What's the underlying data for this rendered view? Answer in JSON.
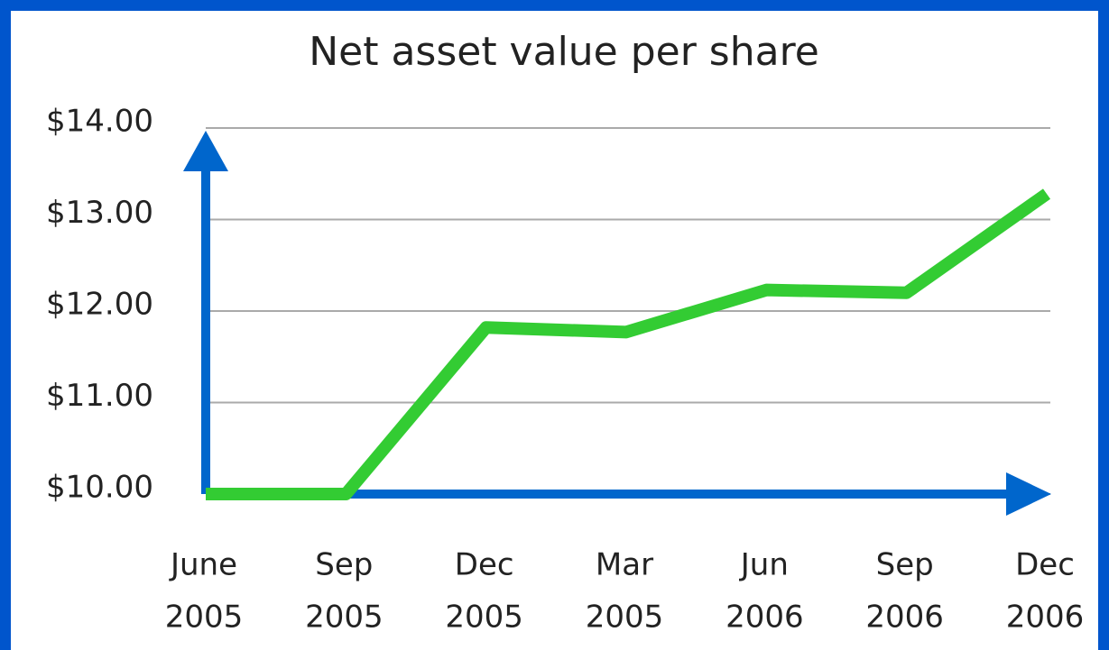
{
  "chart_data": {
    "type": "line",
    "title": "Net asset value per share",
    "categories": [
      [
        "June",
        "2005"
      ],
      [
        "Sep",
        "2005"
      ],
      [
        "Dec",
        "2005"
      ],
      [
        "Mar",
        "2005"
      ],
      [
        "Jun",
        "2006"
      ],
      [
        "Sep",
        "2006"
      ],
      [
        "Dec",
        "2006"
      ]
    ],
    "series": [
      {
        "name": "Net asset value per share",
        "color": "#33cc33",
        "values": [
          10,
          10,
          11.82,
          11.77,
          12.23,
          12.2,
          13.28
        ]
      }
    ],
    "ylim": [
      10,
      14
    ],
    "yticks": [
      {
        "value": 10,
        "label": "$10.00"
      },
      {
        "value": 11,
        "label": "$11.00"
      },
      {
        "value": 12,
        "label": "$12.00"
      },
      {
        "value": 13,
        "label": "$13.00"
      },
      {
        "value": 14,
        "label": "$14.00"
      }
    ],
    "grid": true,
    "axis_color": "#0066cc"
  }
}
